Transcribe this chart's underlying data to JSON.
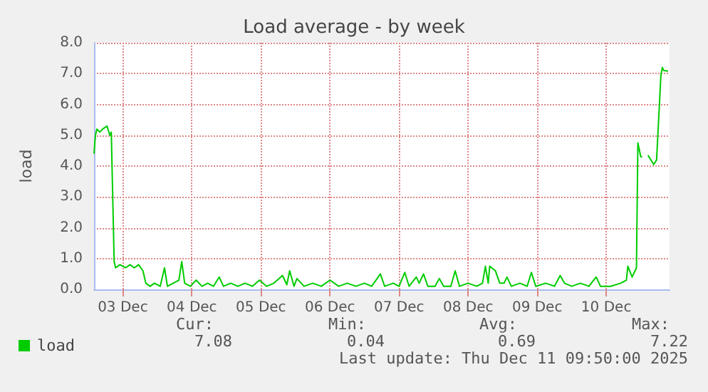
{
  "chart_data": {
    "type": "line",
    "title": "Load average - by week",
    "ylabel": "load",
    "x": [
      "2025-12-03T02:00",
      "2025-12-03T02:30",
      "2025-12-03T03:00",
      "2025-12-03T04:00",
      "2025-12-03T05:00",
      "2025-12-03T06:30",
      "2025-12-03T07:30",
      "2025-12-03T08:00",
      "2025-12-03T09:00",
      "2025-12-03T09:30",
      "2025-12-03T11:00",
      "2025-12-03T13:00",
      "2025-12-03T14:30",
      "2025-12-03T16:00",
      "2025-12-03T17:30",
      "2025-12-03T19:00",
      "2025-12-03T20:00",
      "2025-12-03T21:30",
      "2025-12-03T23:00",
      "2025-12-04T01:00",
      "2025-12-04T02:30",
      "2025-12-04T03:30",
      "2025-12-04T05:30",
      "2025-12-04T07:30",
      "2025-12-04T08:30",
      "2025-12-04T09:30",
      "2025-12-04T11:30",
      "2025-12-04T13:30",
      "2025-12-04T15:30",
      "2025-12-04T17:30",
      "2025-12-04T19:30",
      "2025-12-04T21:30",
      "2025-12-04T23:00",
      "2025-12-05T01:30",
      "2025-12-05T04:00",
      "2025-12-05T06:30",
      "2025-12-05T09:00",
      "2025-12-05T11:30",
      "2025-12-05T14:00",
      "2025-12-05T16:30",
      "2025-12-05T19:30",
      "2025-12-05T21:00",
      "2025-12-05T22:00",
      "2025-12-05T23:30",
      "2025-12-06T00:30",
      "2025-12-06T03:00",
      "2025-12-06T06:00",
      "2025-12-06T09:00",
      "2025-12-06T12:00",
      "2025-12-06T15:00",
      "2025-12-06T18:00",
      "2025-12-06T21:00",
      "2025-12-07T00:00",
      "2025-12-07T02:30",
      "2025-12-07T05:30",
      "2025-12-07T07:00",
      "2025-12-07T10:00",
      "2025-12-07T12:00",
      "2025-12-07T14:00",
      "2025-12-07T15:30",
      "2025-12-07T18:00",
      "2025-12-07T19:00",
      "2025-12-07T20:30",
      "2025-12-07T22:00",
      "2025-12-08T00:30",
      "2025-12-08T02:00",
      "2025-12-08T03:30",
      "2025-12-08T06:00",
      "2025-12-08T07:30",
      "2025-12-08T09:00",
      "2025-12-08T12:00",
      "2025-12-08T15:00",
      "2025-12-08T17:00",
      "2025-12-08T18:00",
      "2025-12-08T19:00",
      "2025-12-08T19:30",
      "2025-12-08T21:30",
      "2025-12-08T23:00",
      "2025-12-09T00:30",
      "2025-12-09T01:30",
      "2025-12-09T03:00",
      "2025-12-09T06:00",
      "2025-12-09T08:30",
      "2025-12-09T10:00",
      "2025-12-09T11:30",
      "2025-12-09T15:00",
      "2025-12-09T18:00",
      "2025-12-09T20:00",
      "2025-12-09T21:30",
      "2025-12-10T00:00",
      "2025-12-10T03:00",
      "2025-12-10T06:00",
      "2025-12-10T08:30",
      "2025-12-10T10:00",
      "2025-12-10T13:30",
      "2025-12-10T17:00",
      "2025-12-10T19:00",
      "2025-12-10T19:30",
      "2025-12-10T21:00",
      "2025-12-10T22:30",
      "2025-12-10T23:00",
      "2025-12-11T00:00",
      "2025-12-11T00:30",
      "2025-12-11T01:00",
      "2025-12-11T02:30",
      "2025-12-11T04:30",
      "2025-12-11T05:30",
      "2025-12-11T07:00",
      "2025-12-11T07:30",
      "2025-12-11T08:00",
      "2025-12-11T09:30"
    ],
    "series": [
      {
        "name": "load",
        "color": "#00cc00",
        "values": [
          4.4,
          5.0,
          5.2,
          5.1,
          5.2,
          5.3,
          5.0,
          5.1,
          0.9,
          0.7,
          0.8,
          0.7,
          0.8,
          0.7,
          0.8,
          0.6,
          0.2,
          0.1,
          0.2,
          0.1,
          0.7,
          0.1,
          0.2,
          0.3,
          0.9,
          0.2,
          0.1,
          0.3,
          0.1,
          0.2,
          0.1,
          0.4,
          0.1,
          0.2,
          0.1,
          0.2,
          0.1,
          0.3,
          0.1,
          0.2,
          0.45,
          0.15,
          0.6,
          0.1,
          0.35,
          0.1,
          0.2,
          0.1,
          0.3,
          0.1,
          0.2,
          0.1,
          0.2,
          0.1,
          0.5,
          0.1,
          0.2,
          0.1,
          0.55,
          0.1,
          0.4,
          0.2,
          0.5,
          0.1,
          0.1,
          0.35,
          0.1,
          0.1,
          0.6,
          0.1,
          0.2,
          0.1,
          0.2,
          0.75,
          0.2,
          0.75,
          0.6,
          0.2,
          0.2,
          0.4,
          0.1,
          0.2,
          0.1,
          0.55,
          0.1,
          0.2,
          0.1,
          0.45,
          0.2,
          0.1,
          0.2,
          0.1,
          0.4,
          0.1,
          0.1,
          0.2,
          0.3,
          0.75,
          0.4,
          0.7,
          4.75,
          4.3,
          4.3,
          null,
          4.35,
          4.05,
          4.2,
          6.95,
          7.2,
          7.1,
          7.08
        ]
      }
    ],
    "xlim": [
      "2025-12-03T02:00",
      "2025-12-11T10:00"
    ],
    "xticks": [
      {
        "value": "2025-12-03T12:00",
        "label": "03 Dec"
      },
      {
        "value": "2025-12-04T12:00",
        "label": "04 Dec"
      },
      {
        "value": "2025-12-05T12:00",
        "label": "05 Dec"
      },
      {
        "value": "2025-12-06T12:00",
        "label": "06 Dec"
      },
      {
        "value": "2025-12-07T12:00",
        "label": "07 Dec"
      },
      {
        "value": "2025-12-08T12:00",
        "label": "08 Dec"
      },
      {
        "value": "2025-12-09T12:00",
        "label": "09 Dec"
      },
      {
        "value": "2025-12-10T12:00",
        "label": "10 Dec"
      }
    ],
    "ylim": [
      0,
      8
    ],
    "yticks": [
      {
        "value": 0,
        "label": "0.0"
      },
      {
        "value": 1,
        "label": "1.0"
      },
      {
        "value": 2,
        "label": "2.0"
      },
      {
        "value": 3,
        "label": "3.0"
      },
      {
        "value": 4,
        "label": "4.0"
      },
      {
        "value": 5,
        "label": "5.0"
      },
      {
        "value": 6,
        "label": "6.0"
      },
      {
        "value": 7,
        "label": "7.0"
      },
      {
        "value": 8,
        "label": "8.0"
      }
    ],
    "grid": true,
    "legend": "bottom left",
    "marker": "none",
    "line_style": "solid",
    "annotations": [
      "Cur:",
      "Min:",
      "Avg:",
      "Max:",
      "7.08",
      "0.04",
      "0.69",
      "7.22",
      "Last update: Thu Dec 11 09:50:00 2025"
    ]
  }
}
